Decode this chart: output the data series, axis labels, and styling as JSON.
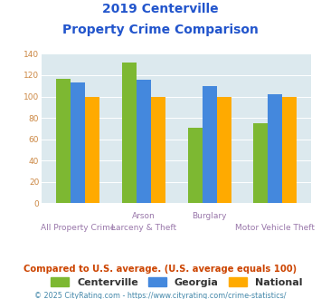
{
  "title_line1": "2019 Centerville",
  "title_line2": "Property Crime Comparison",
  "centerville": [
    117,
    132,
    71,
    75
  ],
  "georgia": [
    113,
    116,
    110,
    102
  ],
  "national": [
    100,
    100,
    100,
    100
  ],
  "color_centerville": "#7db832",
  "color_georgia": "#4488dd",
  "color_national": "#ffaa00",
  "ylim": [
    0,
    140
  ],
  "yticks": [
    0,
    20,
    40,
    60,
    80,
    100,
    120,
    140
  ],
  "plot_bg": "#dce9ee",
  "legend_labels": [
    "Centerville",
    "Georgia",
    "National"
  ],
  "note": "Compared to U.S. average. (U.S. average equals 100)",
  "footer": "© 2025 CityRating.com - https://www.cityrating.com/crime-statistics/",
  "title_color": "#2255cc",
  "note_color": "#cc4400",
  "footer_color": "#4488aa",
  "xlabel_color": "#9977aa",
  "ytick_color": "#cc8844",
  "bar_width": 0.22
}
